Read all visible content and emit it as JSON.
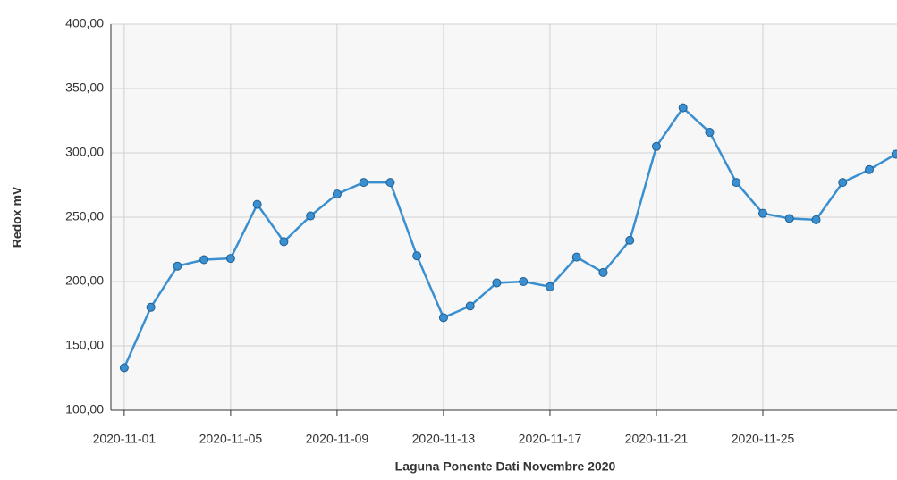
{
  "chart_data": {
    "type": "line",
    "x_label": "Laguna Ponente Dati Novembre 2020",
    "y_label": "Redox mV",
    "x": [
      "2020-11-01",
      "2020-11-02",
      "2020-11-03",
      "2020-11-04",
      "2020-11-05",
      "2020-11-06",
      "2020-11-07",
      "2020-11-08",
      "2020-11-09",
      "2020-11-10",
      "2020-11-11",
      "2020-11-12",
      "2020-11-13",
      "2020-11-14",
      "2020-11-15",
      "2020-11-16",
      "2020-11-17",
      "2020-11-18",
      "2020-11-19",
      "2020-11-20",
      "2020-11-21",
      "2020-11-22",
      "2020-11-23",
      "2020-11-24",
      "2020-11-25",
      "2020-11-26",
      "2020-11-27",
      "2020-11-28",
      "2020-11-29",
      "2020-11-30"
    ],
    "series": [
      {
        "name": "Redox mV",
        "color": "#3a8fd0",
        "values": [
          133,
          180,
          212,
          217,
          218,
          260,
          231,
          251,
          268,
          277,
          277,
          220,
          172,
          181,
          199,
          200,
          196,
          219,
          207,
          232,
          305,
          335,
          316,
          277,
          253,
          249,
          248,
          277,
          287,
          299
        ]
      }
    ],
    "xlim": [
      "2020-10-31T12:00",
      "2020-11-30T01:00"
    ],
    "xticks": [
      "2020-11-01",
      "2020-11-05",
      "2020-11-09",
      "2020-11-13",
      "2020-11-17",
      "2020-11-21",
      "2020-11-25"
    ],
    "ylim": [
      100,
      400
    ],
    "yticks": [
      {
        "value": 100,
        "label": "100,00"
      },
      {
        "value": 150,
        "label": "150,00"
      },
      {
        "value": 200,
        "label": "200,00"
      },
      {
        "value": 250,
        "label": "250,00"
      },
      {
        "value": 300,
        "label": "300,00"
      },
      {
        "value": 350,
        "label": "350,00"
      },
      {
        "value": 400,
        "label": "400,00"
      }
    ],
    "grid": true
  }
}
